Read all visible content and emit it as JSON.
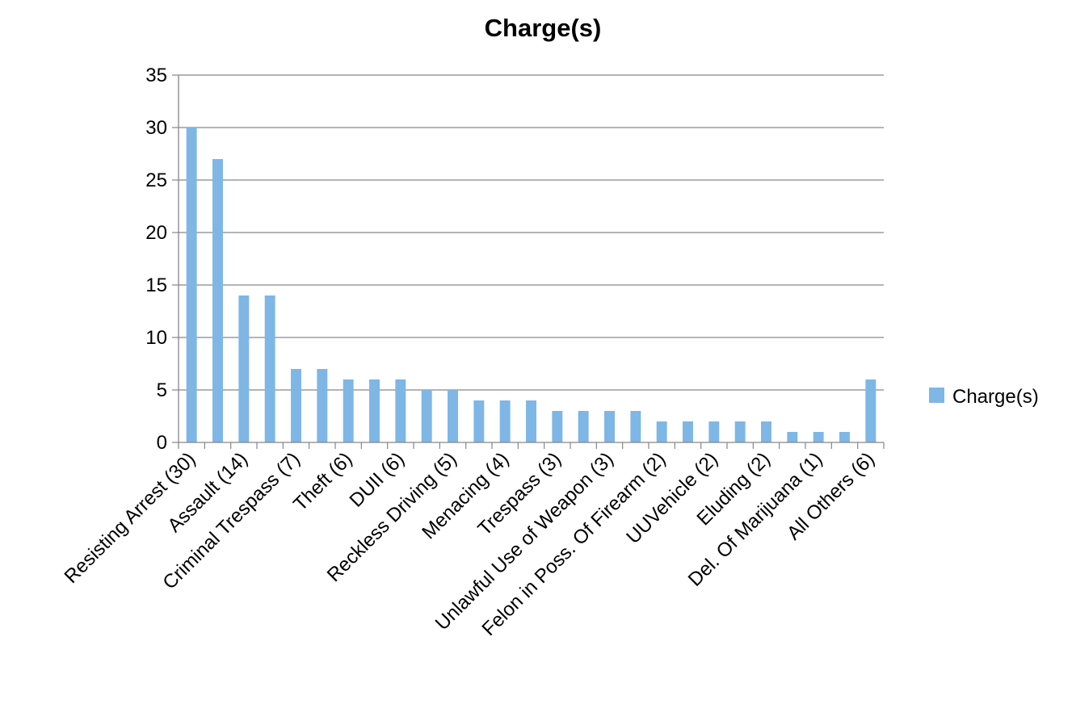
{
  "chart_data": {
    "type": "bar",
    "title": "Charge(s)",
    "xlabel": "",
    "ylabel": "",
    "ylim": [
      0,
      35
    ],
    "yticks": [
      0,
      5,
      10,
      15,
      20,
      25,
      30,
      35
    ],
    "grid": true,
    "legend_position": "right",
    "categories": [
      "Resisting Arrest (30)",
      "",
      "Assault (14)",
      "",
      "Criminal Trespass (7)",
      "",
      "Theft (6)",
      "",
      "DUII (6)",
      "",
      "Reckless Driving (5)",
      "",
      "Menacing (4)",
      "",
      "Trespass (3)",
      "",
      "Unlawful Use of Weapon (3)",
      "",
      "Felon in Poss. Of Firearm (2)",
      "",
      "UUVehicle (2)",
      "",
      "Eluding (2)",
      "",
      "Del. Of Marijuana (1)",
      "",
      "All Others (6)"
    ],
    "series": [
      {
        "name": "Charge(s)",
        "color": "#7EB6E6",
        "values": [
          30,
          27,
          14,
          14,
          7,
          7,
          6,
          6,
          6,
          5,
          5,
          4,
          4,
          4,
          3,
          3,
          3,
          3,
          2,
          2,
          2,
          2,
          2,
          1,
          1,
          1,
          6
        ]
      }
    ]
  }
}
